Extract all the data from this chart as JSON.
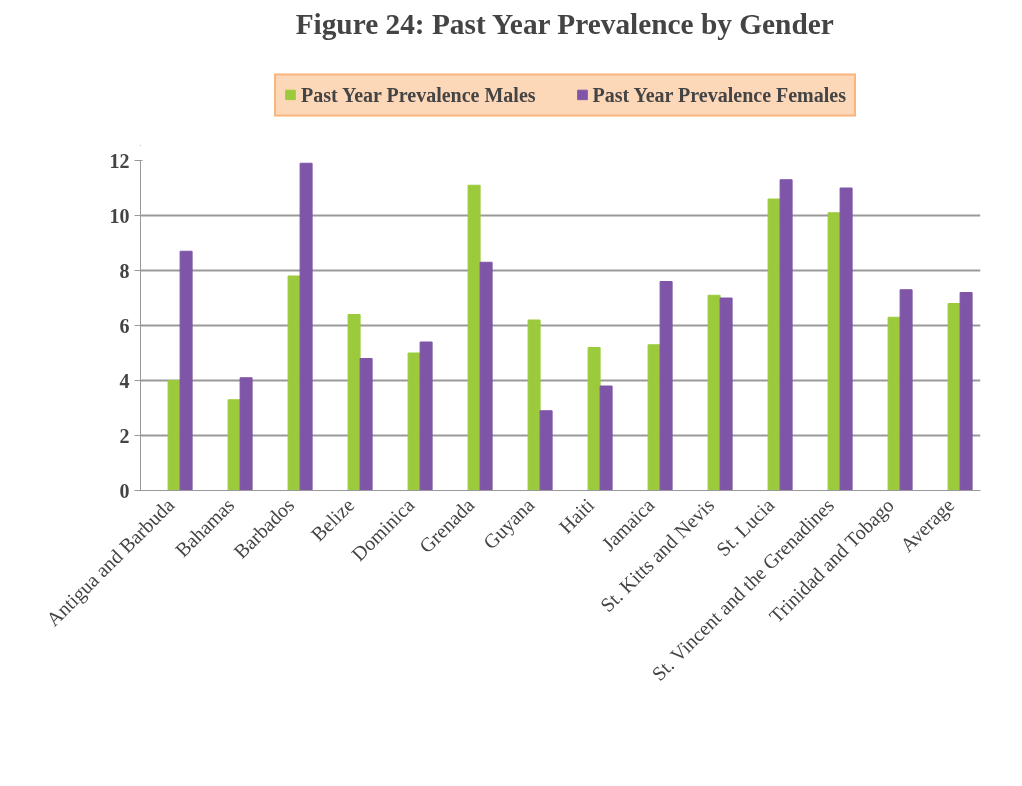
{
  "chart_data": {
    "type": "bar",
    "title": "Figure 24: Past Year Prevalence by Gender",
    "categories": [
      "Antigua and Barbuda",
      "Bahamas",
      "Barbados",
      "Belize",
      "Dominica",
      "Grenada",
      "Guyana",
      "Haiti",
      "Jamaica",
      "St. Kitts and Nevis",
      "St. Lucia",
      "St. Vincent and the Grenadines",
      "Trinidad and Tobago",
      "Average"
    ],
    "series": [
      {
        "name": "Past Year Prevalence Males",
        "color": "#9bcb3c",
        "values": [
          4.0,
          3.3,
          7.8,
          6.4,
          5.0,
          11.1,
          6.2,
          5.2,
          5.3,
          7.1,
          10.6,
          10.1,
          6.3,
          6.8
        ]
      },
      {
        "name": "Past Year Prevalence Females",
        "color": "#7f55a8",
        "values": [
          8.7,
          4.1,
          11.9,
          4.8,
          5.4,
          8.3,
          2.9,
          3.8,
          7.6,
          7.0,
          11.3,
          11.0,
          7.3,
          7.2
        ]
      }
    ],
    "ylim": [
      0,
      12
    ],
    "yticks": [
      0,
      2,
      4,
      6,
      8,
      10,
      12
    ],
    "grid": "y",
    "legend": "top"
  }
}
